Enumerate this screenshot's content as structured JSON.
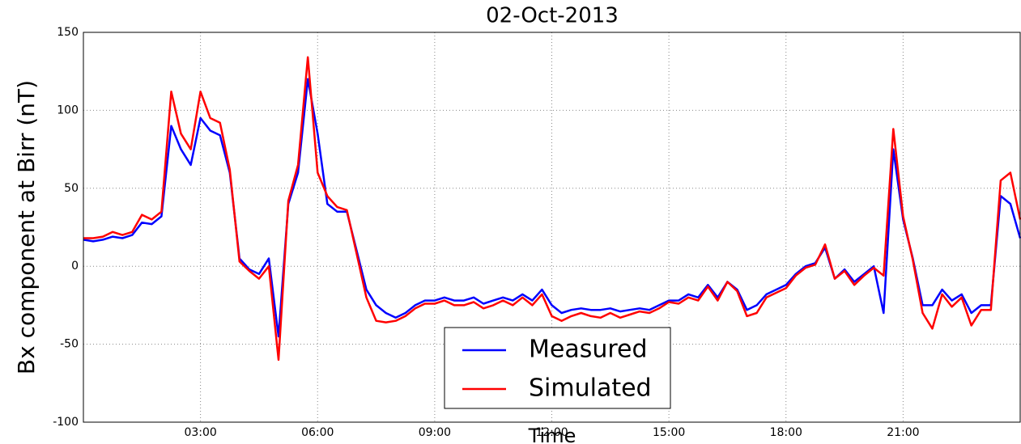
{
  "chart_data": {
    "type": "line",
    "title": "02-Oct-2013",
    "x_label": "Time",
    "y_label": "Bx component at Birr (nT)",
    "xlim": [
      0,
      24
    ],
    "xticks": [
      {
        "value": 3,
        "label": "03:00"
      },
      {
        "value": 6,
        "label": "06:00"
      },
      {
        "value": 9,
        "label": "09:00"
      },
      {
        "value": 12,
        "label": "12:00"
      },
      {
        "value": 15,
        "label": "15:00"
      },
      {
        "value": 18,
        "label": "18:00"
      },
      {
        "value": 21,
        "label": "21:00"
      }
    ],
    "ylim": [
      -100,
      150
    ],
    "yticks": [
      -100,
      -50,
      0,
      50,
      100,
      150
    ],
    "grid": true,
    "legend": "lower center",
    "x": [
      0,
      0.25,
      0.5,
      0.75,
      1,
      1.25,
      1.5,
      1.75,
      2,
      2.25,
      2.5,
      2.75,
      3,
      3.25,
      3.5,
      3.75,
      4,
      4.25,
      4.5,
      4.75,
      5,
      5.25,
      5.5,
      5.75,
      6,
      6.25,
      6.5,
      6.75,
      7,
      7.25,
      7.5,
      7.75,
      8,
      8.25,
      8.5,
      8.75,
      9,
      9.25,
      9.5,
      9.75,
      10,
      10.25,
      10.5,
      10.75,
      11,
      11.25,
      11.5,
      11.75,
      12,
      12.25,
      12.5,
      12.75,
      13,
      13.25,
      13.5,
      13.75,
      14,
      14.25,
      14.5,
      14.75,
      15,
      15.25,
      15.5,
      15.75,
      16,
      16.25,
      16.5,
      16.75,
      17,
      17.25,
      17.5,
      17.75,
      18,
      18.25,
      18.5,
      18.75,
      19,
      19.25,
      19.5,
      19.75,
      20,
      20.25,
      20.5,
      20.75,
      21,
      21.25,
      21.5,
      21.75,
      22,
      22.25,
      22.5,
      22.75,
      23,
      23.25,
      23.5,
      23.75,
      24
    ],
    "series": [
      {
        "name": "Measured",
        "color": "#0000ff",
        "values": [
          17,
          16,
          17,
          19,
          18,
          20,
          28,
          27,
          32,
          90,
          75,
          65,
          95,
          87,
          84,
          60,
          5,
          -2,
          -5,
          5,
          -45,
          40,
          60,
          120,
          85,
          40,
          35,
          35,
          10,
          -15,
          -25,
          -30,
          -33,
          -30,
          -25,
          -22,
          -22,
          -20,
          -22,
          -22,
          -20,
          -24,
          -22,
          -20,
          -22,
          -18,
          -22,
          -15,
          -25,
          -30,
          -28,
          -27,
          -28,
          -28,
          -27,
          -29,
          -28,
          -27,
          -28,
          -25,
          -22,
          -22,
          -18,
          -20,
          -12,
          -20,
          -10,
          -15,
          -28,
          -25,
          -18,
          -15,
          -12,
          -5,
          0,
          2,
          12,
          -8,
          -2,
          -10,
          -5,
          0,
          -30,
          75,
          30,
          5,
          -25,
          -25,
          -15,
          -22,
          -18,
          -30,
          -25,
          -25,
          45,
          40,
          18
        ]
      },
      {
        "name": "Simulated",
        "color": "#ff0000",
        "values": [
          18,
          18,
          19,
          22,
          20,
          22,
          33,
          30,
          35,
          112,
          85,
          75,
          112,
          95,
          92,
          62,
          3,
          -3,
          -8,
          0,
          -60,
          42,
          65,
          134,
          60,
          45,
          38,
          36,
          8,
          -20,
          -35,
          -36,
          -35,
          -32,
          -27,
          -24,
          -24,
          -22,
          -25,
          -25,
          -23,
          -27,
          -25,
          -22,
          -25,
          -20,
          -25,
          -18,
          -32,
          -35,
          -32,
          -30,
          -32,
          -33,
          -30,
          -33,
          -31,
          -29,
          -30,
          -27,
          -23,
          -24,
          -20,
          -22,
          -13,
          -22,
          -10,
          -16,
          -32,
          -30,
          -20,
          -17,
          -14,
          -6,
          -1,
          1,
          14,
          -8,
          -3,
          -12,
          -6,
          -1,
          -6,
          88,
          32,
          4,
          -30,
          -40,
          -18,
          -26,
          -20,
          -38,
          -28,
          -28,
          55,
          60,
          30
        ]
      }
    ]
  }
}
